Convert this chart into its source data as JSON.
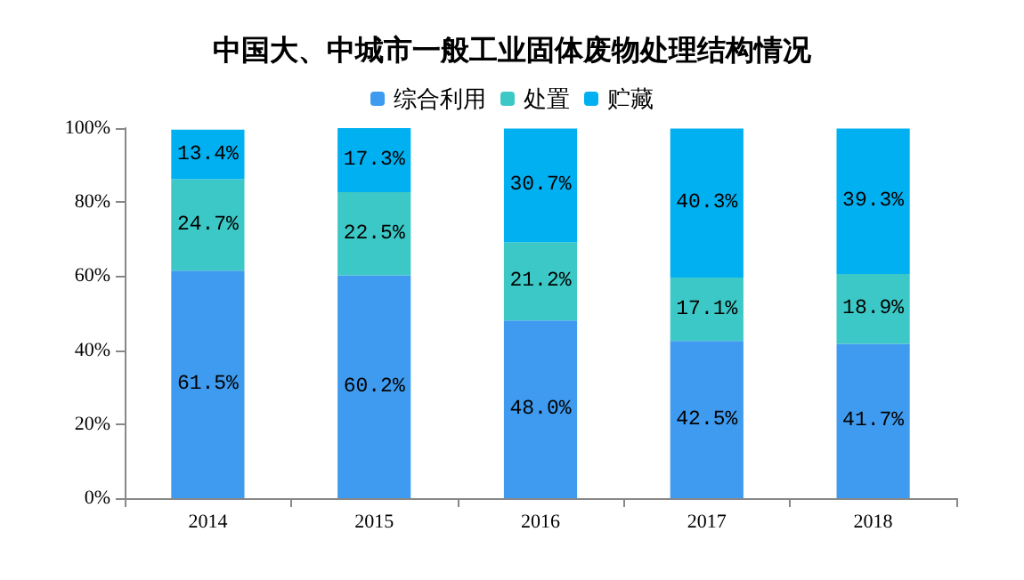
{
  "chart_data": {
    "type": "bar",
    "title": "中国大、中城市一般工业固体废物处理结构情况",
    "categories": [
      "2014",
      "2015",
      "2016",
      "2017",
      "2018"
    ],
    "stacked": true,
    "legend": "top",
    "grid": false,
    "ylim": [
      0,
      100
    ],
    "yticks": [
      {
        "value": 0,
        "label": "0%"
      },
      {
        "value": 20,
        "label": "20%"
      },
      {
        "value": 40,
        "label": "40%"
      },
      {
        "value": 60,
        "label": "60%"
      },
      {
        "value": 80,
        "label": "80%"
      },
      {
        "value": 100,
        "label": "100%"
      }
    ],
    "series": [
      {
        "name": "综合利用",
        "color": "#3f9bef",
        "values": [
          61.5,
          60.2,
          48.0,
          42.5,
          41.7
        ],
        "value_labels": [
          "61.5%",
          "60.2%",
          "48.0%",
          "42.5%",
          "41.7%"
        ]
      },
      {
        "name": "处置",
        "color": "#3cc8c6",
        "values": [
          24.7,
          22.5,
          21.2,
          17.1,
          18.9
        ],
        "value_labels": [
          "24.7%",
          "22.5%",
          "21.2%",
          "17.1%",
          "18.9%"
        ]
      },
      {
        "name": "贮藏",
        "color": "#00b0f0",
        "values": [
          13.4,
          17.3,
          30.7,
          40.3,
          39.3
        ],
        "value_labels": [
          "13.4%",
          "17.3%",
          "30.7%",
          "40.3%",
          "39.3%"
        ]
      }
    ]
  }
}
